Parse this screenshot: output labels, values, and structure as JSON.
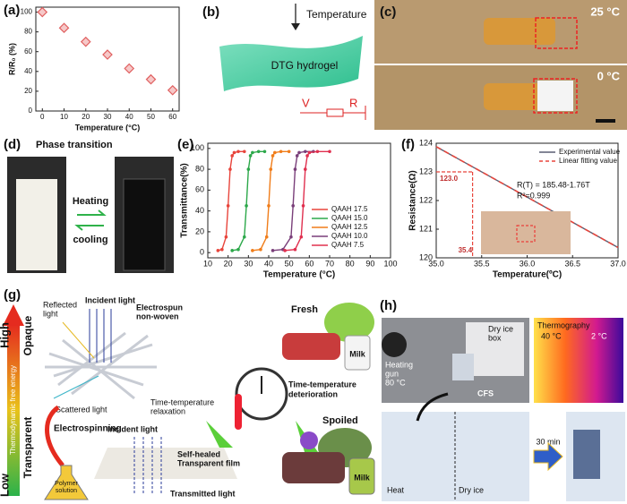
{
  "chart_data": [
    {
      "label": "(a)",
      "type": "scatter",
      "x_label": "Temperature (°C)",
      "y_label": "R/R₀ (%)",
      "x": [
        0,
        10,
        20,
        30,
        40,
        50,
        60
      ],
      "values": [
        100,
        84,
        70,
        57,
        43,
        32,
        21
      ],
      "color": "#e06060",
      "xlim": [
        -3,
        63
      ],
      "ylim": [
        0,
        105
      ],
      "xticks": [
        0,
        10,
        20,
        30,
        40,
        50,
        60
      ],
      "yticks": [
        0,
        20,
        40,
        60,
        80,
        100
      ]
    },
    {
      "label": "(e)",
      "type": "line",
      "x_label": "Temperature (°C)",
      "y_label": "Transmittance(%)",
      "legend": "lower right",
      "xlim": [
        10,
        100
      ],
      "ylim": [
        -5,
        105
      ],
      "xticks": [
        10,
        20,
        30,
        40,
        50,
        60,
        70,
        80,
        90,
        100
      ],
      "yticks": [
        0,
        20,
        40,
        60,
        80,
        100
      ],
      "series": [
        {
          "name": "QAAH 17.5",
          "color": "#e8453c",
          "x": [
            15,
            17,
            19,
            20,
            21,
            22,
            23,
            25,
            28
          ],
          "values": [
            2,
            3,
            15,
            45,
            80,
            93,
            96,
            97,
            97
          ]
        },
        {
          "name": "QAAH 15.0",
          "color": "#2ca84a",
          "x": [
            22,
            25,
            28,
            29,
            30,
            31,
            32,
            35,
            38
          ],
          "values": [
            2,
            3,
            15,
            45,
            80,
            93,
            96,
            97,
            97
          ]
        },
        {
          "name": "QAAH 12.5",
          "color": "#f07d1a",
          "x": [
            32,
            36,
            39,
            40,
            41,
            42,
            43,
            46,
            50
          ],
          "values": [
            2,
            3,
            15,
            45,
            80,
            93,
            96,
            97,
            97
          ]
        },
        {
          "name": "QAAH 10.0",
          "color": "#7a3f7a",
          "x": [
            42,
            47,
            51,
            52,
            53,
            54,
            55,
            58,
            62
          ],
          "values": [
            2,
            3,
            15,
            45,
            80,
            93,
            96,
            97,
            97
          ]
        },
        {
          "name": "QAAH 7.5",
          "color": "#e0304f",
          "x": [
            48,
            53,
            56,
            57,
            58,
            59,
            60,
            64,
            70
          ],
          "values": [
            2,
            3,
            15,
            45,
            80,
            93,
            96,
            97,
            97
          ]
        }
      ]
    },
    {
      "label": "(f)",
      "type": "line",
      "x_label": "Temperature(ºC)",
      "y_label": "Resistance(Ω)",
      "legend": "upper right",
      "xlim": [
        35,
        37
      ],
      "ylim": [
        120,
        124
      ],
      "xticks": [
        {
          "value": 35,
          "label": "35.0"
        },
        35.5,
        {
          "value": 36,
          "label": "36.0"
        },
        36.5,
        {
          "value": 37,
          "label": "37.0"
        }
      ],
      "yticks": [
        120,
        121,
        122,
        123,
        124
      ],
      "x": [
        35,
        37
      ],
      "series": [
        {
          "name": "Experimental value",
          "color": "#5a5f73",
          "values": [
            123.88,
            120.36
          ]
        },
        {
          "name": "Linear fitting value",
          "color": "#e8453c",
          "dashed": true,
          "values": [
            123.88,
            120.36
          ]
        }
      ],
      "reference": {
        "x": 35.4,
        "y": 123,
        "x_label": "35.4",
        "y_label": "123.0"
      },
      "equation": "R(T) = 185.48-1.76T",
      "r_squared": "R²=0.999"
    }
  ],
  "panels": {
    "b": {
      "label": "(b)",
      "arrow_text": "Temperature",
      "material": "DTG hydrogel",
      "circuit_v": "V",
      "circuit_r": "R"
    },
    "c": {
      "label": "(c)",
      "top_temp": "25 °C",
      "bottom_temp": "0 °C"
    },
    "d": {
      "label": "(d)",
      "title": "Phase transition",
      "heating": "Heating",
      "cooling": "cooling"
    },
    "g": {
      "label": "(g)",
      "high": "High",
      "low": "Low",
      "opaque": "Opaque",
      "transparent": "Transparent",
      "energy": "Thermodynamic free energy",
      "reflected": [
        "Reflected",
        "light"
      ],
      "incident_top": "Incident light",
      "nonwoven": [
        "Electrospun",
        "non-woven"
      ],
      "scattered": "Scattered light",
      "relaxation": [
        "Time-temperature",
        "relaxation"
      ],
      "electrospinning": "Electrospinning",
      "incident_bottom": "Incident light",
      "film": [
        "Self-healed",
        "Transparent film"
      ],
      "transmitted": "Transmitted light",
      "polymer": [
        "Polymer",
        "solution"
      ],
      "fresh": "Fresh",
      "milk_fresh": "Milk",
      "deterioration": [
        "Time-temperature",
        "deterioration"
      ],
      "spoiled": "Spoiled",
      "milk_spoiled": "Milk"
    },
    "h": {
      "label": "(h)",
      "dry_ice_box": [
        "Dry ice",
        "box"
      ],
      "heating_gun": [
        "Heating",
        "gun",
        "80 °C"
      ],
      "cfs": "CFS",
      "thermography": "Thermography",
      "hot": "40 °C",
      "cold": "2 °C",
      "heat": "Heat",
      "dry_ice": "Dry ice",
      "time": "30 min"
    }
  }
}
